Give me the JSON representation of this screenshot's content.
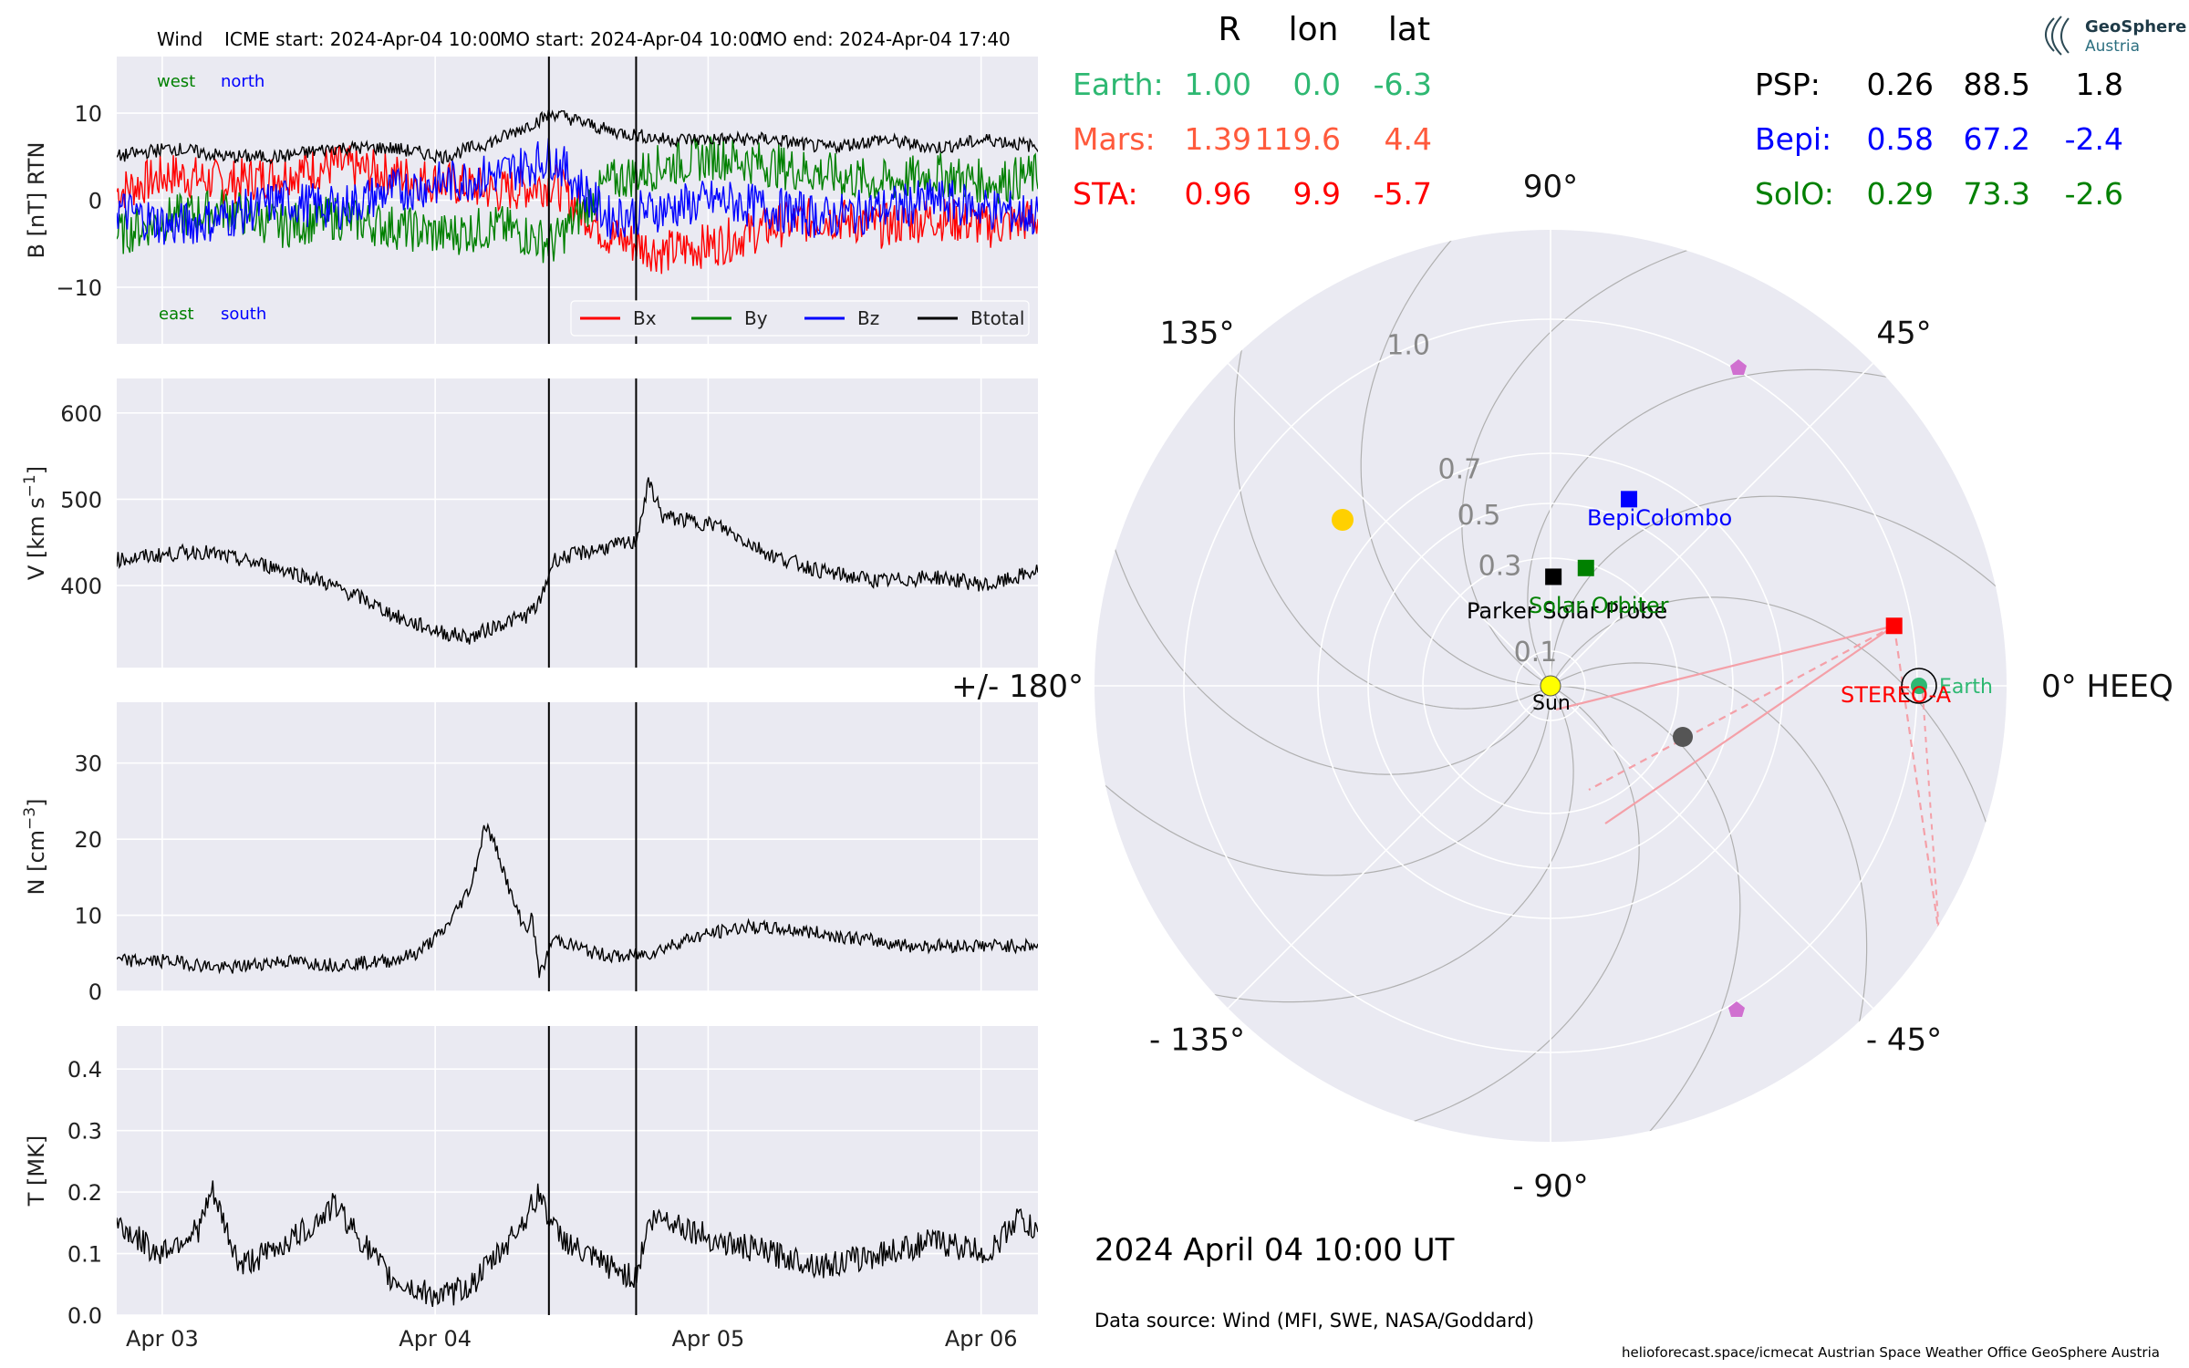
{
  "header": {
    "spacecraft": "Wind",
    "icme_start": "ICME start: 2024-Apr-04 10:00",
    "mo_start": "MO start: 2024-Apr-04 10:00",
    "mo_end": "MO end: 2024-Apr-04 17:40"
  },
  "logo": {
    "line1": "GeoSphere",
    "line2": "Austria"
  },
  "footer": {
    "datetime": "2024 April 04  10:00 UT",
    "data_source": "Data source: Wind (MFI, SWE, NASA/Goddard)",
    "credits": "helioforecast.space/icmecat   Austrian Space Weather Office   GeoSphere Austria"
  },
  "colors": {
    "panel_bg": "#eaeaf2",
    "grid": "#ffffff",
    "bx": "#ff0000",
    "by": "#008000",
    "bz": "#0000ff",
    "btotal": "#000000",
    "earth": "#2eb872",
    "mars": "#ff5a3c",
    "sta": "#ff0000",
    "psp": "#000000",
    "bepi": "#0000ff",
    "solo": "#008000"
  },
  "chart_data": [
    {
      "type": "line",
      "ylabel": "B [nT] RTN",
      "ylim": [
        -16.5,
        16.5
      ],
      "yticks": [
        "10",
        "0",
        "−10"
      ],
      "ytick_values": [
        10,
        0,
        -10
      ],
      "annotations": {
        "west": "west",
        "north": "north",
        "east": "east",
        "south": "south"
      },
      "legend": [
        "Bx",
        "By",
        "Bz",
        "Btotal"
      ],
      "legend_position": "lower right",
      "x_range_days": [
        "2024-04-02 20:00",
        "2024-04-06 05:00"
      ],
      "series": [
        {
          "name": "Bx",
          "x": [
            0,
            0.2,
            0.4,
            0.6,
            0.8,
            1.0,
            1.2,
            1.4,
            1.6,
            1.8,
            2.0,
            2.2,
            2.4,
            2.6,
            2.8,
            3.0,
            3.2,
            3.4
          ],
          "values": [
            1,
            3,
            2,
            3,
            4,
            3,
            2,
            1,
            2,
            -4,
            -6,
            -5,
            -3,
            -2,
            -3,
            -2,
            -3,
            -2
          ]
        },
        {
          "name": "By",
          "x": [
            0,
            0.2,
            0.4,
            0.6,
            0.8,
            1.0,
            1.2,
            1.4,
            1.6,
            1.8,
            2.0,
            2.2,
            2.4,
            2.6,
            2.8,
            3.0,
            3.2,
            3.4
          ],
          "values": [
            -4,
            -2,
            -1,
            -3,
            -2,
            -3,
            -4,
            -3,
            -5,
            2,
            4,
            5,
            4,
            3,
            2,
            3,
            2,
            3
          ]
        },
        {
          "name": "Bz",
          "x": [
            0,
            0.2,
            0.4,
            0.6,
            0.8,
            1.0,
            1.2,
            1.4,
            1.6,
            1.8,
            2.0,
            2.2,
            2.4,
            2.6,
            2.8,
            3.0,
            3.2,
            3.4
          ],
          "values": [
            -1,
            -3,
            -2,
            0,
            -1,
            1,
            2,
            3,
            5,
            -2,
            -1,
            0,
            -1,
            -2,
            -1,
            0,
            -1,
            -2
          ]
        },
        {
          "name": "Btotal",
          "x": [
            0,
            0.2,
            0.4,
            0.6,
            0.8,
            1.0,
            1.2,
            1.4,
            1.6,
            1.8,
            2.0,
            2.2,
            2.4,
            2.6,
            2.8,
            3.0,
            3.2,
            3.4
          ],
          "values": [
            5,
            6,
            5,
            5,
            6,
            6,
            5,
            7,
            10,
            8,
            7,
            7,
            7,
            6,
            7,
            6,
            7,
            6
          ]
        }
      ]
    },
    {
      "type": "line",
      "ylabel": "V [km s",
      "ylabel_sup": "−1",
      "ylabel_end": "]",
      "ylim": [
        305,
        640
      ],
      "yticks": [
        "600",
        "500",
        "400"
      ],
      "ytick_values": [
        600,
        500,
        400
      ],
      "series": [
        {
          "name": "V",
          "x": [
            0,
            0.15,
            0.3,
            0.45,
            0.6,
            0.75,
            0.9,
            1.05,
            1.2,
            1.3,
            1.4,
            1.5,
            1.55,
            1.6,
            1.8,
            1.9,
            1.95,
            2.0,
            2.2,
            2.4,
            2.6,
            2.8,
            3.0,
            3.2,
            3.4
          ],
          "values": [
            430,
            435,
            440,
            430,
            420,
            405,
            385,
            360,
            345,
            340,
            355,
            365,
            380,
            430,
            445,
            450,
            520,
            480,
            470,
            435,
            415,
            405,
            410,
            400,
            420
          ]
        }
      ]
    },
    {
      "type": "line",
      "ylabel": "N [cm",
      "ylabel_sup": "−3",
      "ylabel_end": "]",
      "ylim": [
        0,
        38
      ],
      "yticks": [
        "30",
        "20",
        "10",
        "0"
      ],
      "ytick_values": [
        30,
        20,
        10,
        0
      ],
      "series": [
        {
          "name": "N",
          "x": [
            0,
            0.2,
            0.4,
            0.6,
            0.8,
            1.0,
            1.1,
            1.2,
            1.3,
            1.35,
            1.4,
            1.45,
            1.5,
            1.52,
            1.55,
            1.6,
            1.75,
            1.85,
            1.95,
            2.1,
            2.3,
            2.5,
            2.7,
            2.9,
            3.1,
            3.3,
            3.4
          ],
          "values": [
            4,
            4,
            3,
            4,
            3.5,
            4,
            5,
            8,
            14,
            22,
            18,
            12,
            8,
            10,
            2,
            7,
            5,
            4.5,
            5,
            7,
            8.5,
            8,
            7,
            6,
            6,
            6,
            6
          ]
        }
      ]
    },
    {
      "type": "line",
      "ylabel": "T [MK]",
      "ylim": [
        0,
        0.47
      ],
      "yticks": [
        "0.4",
        "0.3",
        "0.2",
        "0.1",
        "0.0"
      ],
      "ytick_values": [
        0.4,
        0.3,
        0.2,
        0.1,
        0.0
      ],
      "xticks": [
        "Apr 03",
        "Apr 04",
        "Apr 05",
        "Apr 06"
      ],
      "xtick_values": [
        0.1667,
        1.1667,
        2.1667,
        3.1667
      ],
      "series": [
        {
          "name": "T",
          "x": [
            0,
            0.15,
            0.3,
            0.35,
            0.45,
            0.55,
            0.7,
            0.8,
            0.9,
            1.0,
            1.1,
            1.2,
            1.3,
            1.4,
            1.5,
            1.55,
            1.6,
            1.7,
            1.8,
            1.9,
            1.95,
            2.0,
            2.2,
            2.4,
            2.6,
            2.8,
            3.0,
            3.2,
            3.3,
            3.4
          ],
          "values": [
            0.15,
            0.1,
            0.14,
            0.2,
            0.08,
            0.1,
            0.14,
            0.18,
            0.12,
            0.06,
            0.04,
            0.03,
            0.05,
            0.1,
            0.16,
            0.2,
            0.14,
            0.1,
            0.08,
            0.06,
            0.15,
            0.16,
            0.12,
            0.1,
            0.08,
            0.1,
            0.12,
            0.1,
            0.16,
            0.12
          ]
        }
      ]
    },
    {
      "type": "scatter",
      "title": "",
      "r_labels": [
        "1.0",
        "0.7",
        "0.5",
        "0.3",
        "0.1"
      ],
      "r_values": [
        1.0,
        0.7,
        0.5,
        0.3,
        0.1
      ],
      "angle_labels": [
        {
          "text": "0° HEEQ",
          "angle": 0
        },
        {
          "text": "45°",
          "angle": 45
        },
        {
          "text": "90°",
          "angle": 90
        },
        {
          "text": "135°",
          "angle": 135
        },
        {
          "text": "+/- 180°",
          "angle": 180
        },
        {
          "text": "- 135°",
          "angle": -135
        },
        {
          "text": "- 90°",
          "angle": -90
        },
        {
          "text": "- 45°",
          "angle": -45
        }
      ],
      "bodies": [
        {
          "name": "Earth",
          "label": "Earth",
          "r": 1.0,
          "lon": 0.0,
          "marker": "circle",
          "color": "#2eb872"
        },
        {
          "name": "Mars",
          "label": "",
          "r": 1.39,
          "lon": 119.6,
          "marker": "circle",
          "color": "#ffd000"
        },
        {
          "name": "STEREO-A",
          "label": "STEREO-A",
          "r": 0.96,
          "lon": 9.9,
          "marker": "square",
          "color": "#ff0000"
        },
        {
          "name": "PSP",
          "label": "Parker Solar Probe",
          "r": 0.26,
          "lon": 88.5,
          "marker": "square",
          "color": "#000000"
        },
        {
          "name": "Bepi",
          "label": "BepiColombo",
          "r": 0.58,
          "lon": 67.2,
          "marker": "square",
          "color": "#0000ff"
        },
        {
          "name": "SolO",
          "label": "Solar Orbiter",
          "r": 0.29,
          "lon": 73.3,
          "marker": "square",
          "color": "#008000"
        },
        {
          "name": "Sun",
          "label": "Sun",
          "r": 0.0,
          "lon": 0.0,
          "marker": "circle",
          "color": "#ffff00"
        }
      ]
    }
  ],
  "positions_table": {
    "headers": [
      "R",
      "lon",
      "lat"
    ],
    "left": [
      {
        "name": "Earth:",
        "R": "1.00",
        "lon": "0.0",
        "lat": "-6.3",
        "color": "#2eb872"
      },
      {
        "name": "Mars:",
        "R": "1.39",
        "lon": "119.6",
        "lat": "4.4",
        "color": "#ff5a3c"
      },
      {
        "name": "STA:",
        "R": "0.96",
        "lon": "9.9",
        "lat": "-5.7",
        "color": "#ff0000"
      }
    ],
    "right": [
      {
        "name": "PSP:",
        "R": "0.26",
        "lon": "88.5",
        "lat": "1.8",
        "color": "#000000"
      },
      {
        "name": "Bepi:",
        "R": "0.58",
        "lon": "67.2",
        "lat": "-2.4",
        "color": "#0000ff"
      },
      {
        "name": "SolO:",
        "R": "0.29",
        "lon": "73.3",
        "lat": "-2.6",
        "color": "#008000"
      }
    ]
  }
}
